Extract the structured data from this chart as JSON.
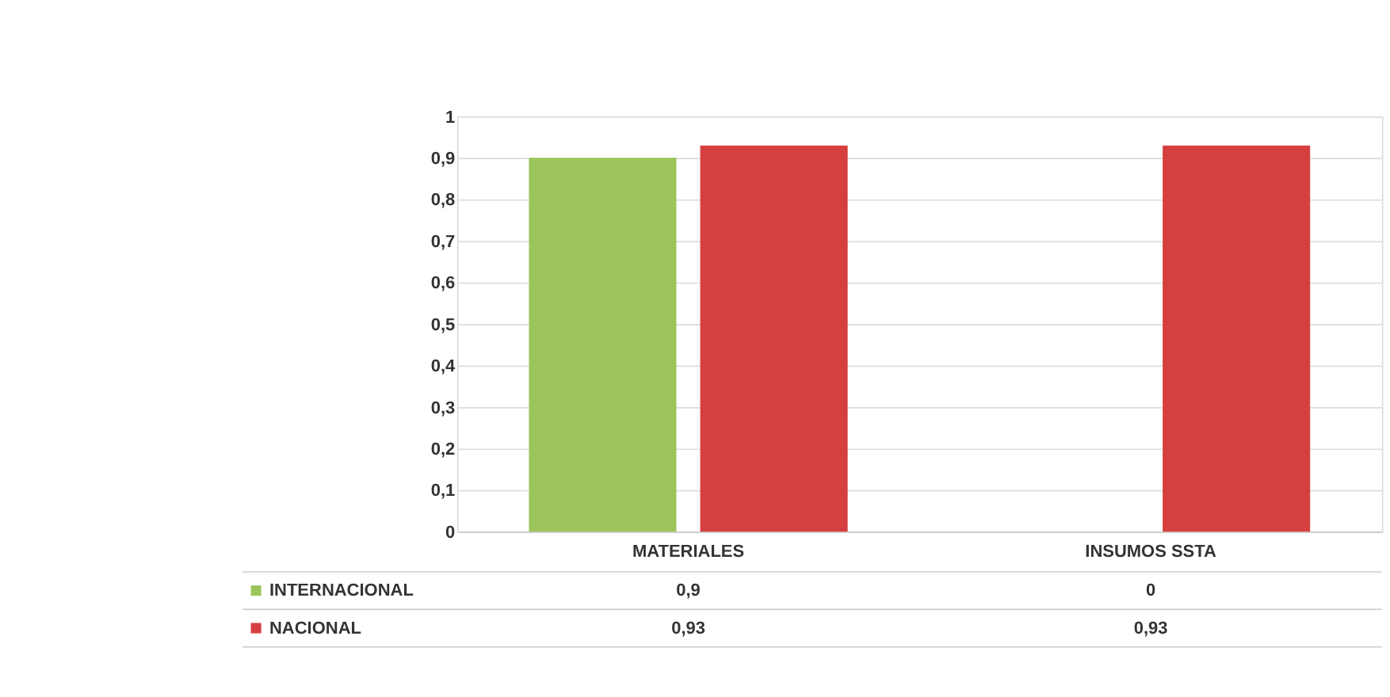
{
  "chart_data": {
    "type": "bar",
    "categories": [
      "MATERIALES",
      "INSUMOS SSTA"
    ],
    "series": [
      {
        "name": "INTERNACIONAL",
        "color": "#9bc45a",
        "values": [
          0.9,
          0
        ],
        "value_labels": [
          "0,9",
          "0"
        ]
      },
      {
        "name": "NACIONAL",
        "color": "#d63f3f",
        "values": [
          0.93,
          0.93
        ],
        "value_labels": [
          "0,93",
          "0,93"
        ]
      }
    ],
    "ylim": [
      0,
      1
    ],
    "yticks": [
      0,
      {
        "value": 0.1,
        "label": "0,1"
      },
      {
        "value": 0.2,
        "label": "0,2"
      },
      {
        "value": 0.3,
        "label": "0,3"
      },
      {
        "value": 0.4,
        "label": "0,4"
      },
      {
        "value": 0.5,
        "label": "0,5"
      },
      {
        "value": 0.6,
        "label": "0,6"
      },
      {
        "value": 0.7,
        "label": "0,7"
      },
      {
        "value": 0.8,
        "label": "0,8"
      },
      {
        "value": 0.9,
        "label": "0,9"
      },
      1
    ],
    "grid": "y",
    "legend": "bottom"
  }
}
